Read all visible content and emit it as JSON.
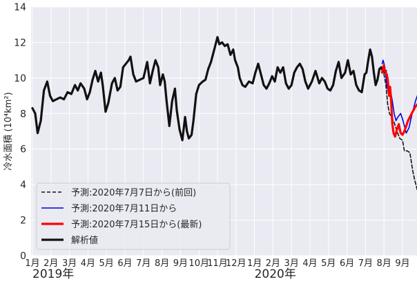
{
  "chart_data": {
    "type": "line",
    "ylabel": "冷水面積 (10⁴km²)",
    "ylim": [
      0,
      14
    ],
    "y_ticks": [
      "0",
      "2",
      "4",
      "6",
      "8",
      "10",
      "12",
      "14"
    ],
    "xlim": [
      0,
      20
    ],
    "x_tick_positions": [
      0,
      1,
      2,
      3,
      4,
      5,
      6,
      7,
      8,
      9,
      10,
      11,
      12,
      13,
      14,
      15,
      16,
      17,
      18,
      19,
      20
    ],
    "x_tick_labels": [
      "1月",
      "2月",
      "3月",
      "4月",
      "5月",
      "6月",
      "7月",
      "8月",
      "9月",
      "10月",
      "11月",
      "12月",
      "1月",
      "2月",
      "3月",
      "4月",
      "5月",
      "6月",
      "7月",
      "8月",
      "9月"
    ],
    "year_labels": [
      {
        "text": "2019年",
        "x": 0
      },
      {
        "text": "2020年",
        "x": 12
      }
    ],
    "grid": true,
    "legend_position": "lower left",
    "series": [
      {
        "name": "解析値",
        "color": "#111111",
        "style": "solid",
        "points": [
          [
            0.0,
            8.3
          ],
          [
            0.15,
            8.0
          ],
          [
            0.28,
            6.9
          ],
          [
            0.45,
            7.6
          ],
          [
            0.62,
            9.3
          ],
          [
            0.8,
            9.8
          ],
          [
            0.95,
            9.0
          ],
          [
            1.1,
            8.7
          ],
          [
            1.3,
            8.8
          ],
          [
            1.5,
            8.9
          ],
          [
            1.7,
            8.8
          ],
          [
            1.9,
            9.2
          ],
          [
            2.1,
            9.1
          ],
          [
            2.3,
            9.6
          ],
          [
            2.45,
            9.3
          ],
          [
            2.6,
            9.7
          ],
          [
            2.8,
            9.4
          ],
          [
            2.95,
            8.8
          ],
          [
            3.1,
            9.2
          ],
          [
            3.25,
            9.9
          ],
          [
            3.4,
            10.4
          ],
          [
            3.55,
            9.8
          ],
          [
            3.7,
            10.3
          ],
          [
            3.8,
            9.6
          ],
          [
            3.95,
            8.1
          ],
          [
            4.1,
            8.6
          ],
          [
            4.3,
            9.7
          ],
          [
            4.45,
            10.0
          ],
          [
            4.6,
            9.3
          ],
          [
            4.75,
            9.5
          ],
          [
            4.9,
            10.6
          ],
          [
            5.05,
            10.8
          ],
          [
            5.2,
            11.0
          ],
          [
            5.3,
            11.2
          ],
          [
            5.45,
            10.2
          ],
          [
            5.6,
            9.8
          ],
          [
            5.8,
            9.9
          ],
          [
            6.0,
            10.0
          ],
          [
            6.2,
            10.9
          ],
          [
            6.35,
            9.7
          ],
          [
            6.5,
            10.4
          ],
          [
            6.65,
            11.0
          ],
          [
            6.8,
            10.6
          ],
          [
            6.9,
            9.6
          ],
          [
            7.05,
            10.2
          ],
          [
            7.15,
            9.8
          ],
          [
            7.25,
            8.7
          ],
          [
            7.4,
            7.3
          ],
          [
            7.55,
            8.7
          ],
          [
            7.7,
            9.4
          ],
          [
            7.8,
            8.2
          ],
          [
            7.95,
            7.1
          ],
          [
            8.1,
            6.5
          ],
          [
            8.25,
            7.8
          ],
          [
            8.35,
            7.0
          ],
          [
            8.45,
            6.6
          ],
          [
            8.6,
            6.8
          ],
          [
            8.7,
            7.6
          ],
          [
            8.85,
            9.1
          ],
          [
            9.0,
            9.6
          ],
          [
            9.2,
            9.8
          ],
          [
            9.35,
            9.9
          ],
          [
            9.5,
            10.5
          ],
          [
            9.65,
            10.9
          ],
          [
            9.85,
            11.7
          ],
          [
            10.0,
            12.3
          ],
          [
            10.1,
            11.9
          ],
          [
            10.25,
            12.0
          ],
          [
            10.4,
            11.8
          ],
          [
            10.55,
            11.9
          ],
          [
            10.7,
            11.3
          ],
          [
            10.85,
            11.6
          ],
          [
            10.95,
            11.0
          ],
          [
            11.1,
            10.6
          ],
          [
            11.2,
            10.0
          ],
          [
            11.35,
            9.6
          ],
          [
            11.5,
            9.5
          ],
          [
            11.7,
            9.8
          ],
          [
            11.9,
            9.7
          ],
          [
            12.05,
            10.3
          ],
          [
            12.2,
            10.8
          ],
          [
            12.35,
            10.2
          ],
          [
            12.5,
            9.6
          ],
          [
            12.65,
            9.4
          ],
          [
            12.8,
            9.7
          ],
          [
            12.95,
            10.1
          ],
          [
            13.1,
            9.8
          ],
          [
            13.25,
            10.6
          ],
          [
            13.4,
            10.3
          ],
          [
            13.55,
            10.6
          ],
          [
            13.7,
            9.7
          ],
          [
            13.85,
            9.4
          ],
          [
            14.0,
            9.6
          ],
          [
            14.15,
            10.3
          ],
          [
            14.3,
            10.6
          ],
          [
            14.45,
            10.8
          ],
          [
            14.6,
            10.5
          ],
          [
            14.75,
            9.8
          ],
          [
            14.9,
            9.4
          ],
          [
            15.1,
            9.8
          ],
          [
            15.3,
            10.4
          ],
          [
            15.5,
            9.7
          ],
          [
            15.65,
            10.0
          ],
          [
            15.8,
            9.8
          ],
          [
            15.95,
            9.4
          ],
          [
            16.1,
            9.3
          ],
          [
            16.25,
            9.6
          ],
          [
            16.4,
            10.4
          ],
          [
            16.55,
            10.9
          ],
          [
            16.7,
            10.0
          ],
          [
            16.9,
            10.3
          ],
          [
            17.05,
            11.0
          ],
          [
            17.2,
            10.2
          ],
          [
            17.35,
            10.4
          ],
          [
            17.5,
            9.6
          ],
          [
            17.65,
            9.3
          ],
          [
            17.8,
            9.2
          ],
          [
            17.95,
            10.2
          ],
          [
            18.05,
            10.3
          ],
          [
            18.15,
            11.0
          ],
          [
            18.25,
            11.6
          ],
          [
            18.35,
            11.2
          ],
          [
            18.45,
            10.3
          ],
          [
            18.55,
            9.6
          ],
          [
            18.65,
            9.9
          ],
          [
            18.75,
            10.5
          ],
          [
            18.85,
            10.6
          ],
          [
            18.95,
            10.4
          ],
          [
            19.05,
            10.3
          ],
          [
            19.1,
            10.4
          ]
        ]
      },
      {
        "name": "予測:2020年7月7日から(前回)",
        "color": "#111111",
        "style": "dashed",
        "points": [
          [
            18.85,
            10.5
          ],
          [
            19.0,
            10.2
          ],
          [
            19.1,
            9.6
          ],
          [
            19.2,
            8.5
          ],
          [
            19.3,
            8.0
          ],
          [
            19.4,
            7.8
          ],
          [
            19.55,
            7.5
          ],
          [
            19.7,
            7.0
          ],
          [
            19.85,
            6.6
          ],
          [
            20.0,
            6.5
          ],
          [
            20.1,
            5.9
          ],
          [
            20.25,
            5.9
          ],
          [
            20.4,
            5.8
          ],
          [
            20.55,
            4.8
          ],
          [
            20.65,
            4.3
          ],
          [
            20.8,
            3.7
          ]
        ]
      },
      {
        "name": "予測:2020年7月11日から",
        "color": "#0000dd",
        "style": "solid",
        "points": [
          [
            18.9,
            10.8
          ],
          [
            18.95,
            11.0
          ],
          [
            19.05,
            10.6
          ],
          [
            19.15,
            9.6
          ],
          [
            19.25,
            9.1
          ],
          [
            19.35,
            9.3
          ],
          [
            19.45,
            8.7
          ],
          [
            19.55,
            8.0
          ],
          [
            19.65,
            7.6
          ],
          [
            19.75,
            7.8
          ],
          [
            19.9,
            8.0
          ],
          [
            20.0,
            7.7
          ],
          [
            20.1,
            7.3
          ],
          [
            20.2,
            6.9
          ],
          [
            20.35,
            7.2
          ],
          [
            20.5,
            7.9
          ],
          [
            20.6,
            8.3
          ],
          [
            20.7,
            8.7
          ],
          [
            20.8,
            9.0
          ]
        ]
      },
      {
        "name": "予測:2020年7月15日から(最新)",
        "color": "#ff0000",
        "style": "solid",
        "points": [
          [
            18.9,
            10.3
          ],
          [
            18.98,
            10.7
          ],
          [
            19.05,
            10.4
          ],
          [
            19.15,
            10.2
          ],
          [
            19.2,
            9.9
          ],
          [
            19.28,
            9.0
          ],
          [
            19.33,
            9.5
          ],
          [
            19.38,
            8.8
          ],
          [
            19.45,
            7.4
          ],
          [
            19.52,
            6.9
          ],
          [
            19.6,
            6.7
          ],
          [
            19.7,
            7.1
          ],
          [
            19.8,
            7.4
          ],
          [
            19.9,
            6.9
          ],
          [
            20.0,
            6.8
          ],
          [
            20.1,
            7.0
          ],
          [
            20.2,
            7.3
          ],
          [
            20.3,
            7.6
          ],
          [
            20.4,
            7.8
          ],
          [
            20.5,
            8.0
          ],
          [
            20.6,
            8.2
          ],
          [
            20.7,
            8.4
          ],
          [
            20.8,
            8.5
          ],
          [
            20.9,
            8.7
          ]
        ]
      }
    ],
    "legend": [
      {
        "label": "予測:2020年7月7日から(前回)",
        "color": "#111111",
        "style": "dashed"
      },
      {
        "label": "予測:2020年7月11日から",
        "color": "#0000dd",
        "style": "thin"
      },
      {
        "label": "予測:2020年7月15日から(最新)",
        "color": "#ff0000",
        "style": "thick"
      },
      {
        "label": "解析値",
        "color": "#111111",
        "style": "thick"
      }
    ]
  }
}
